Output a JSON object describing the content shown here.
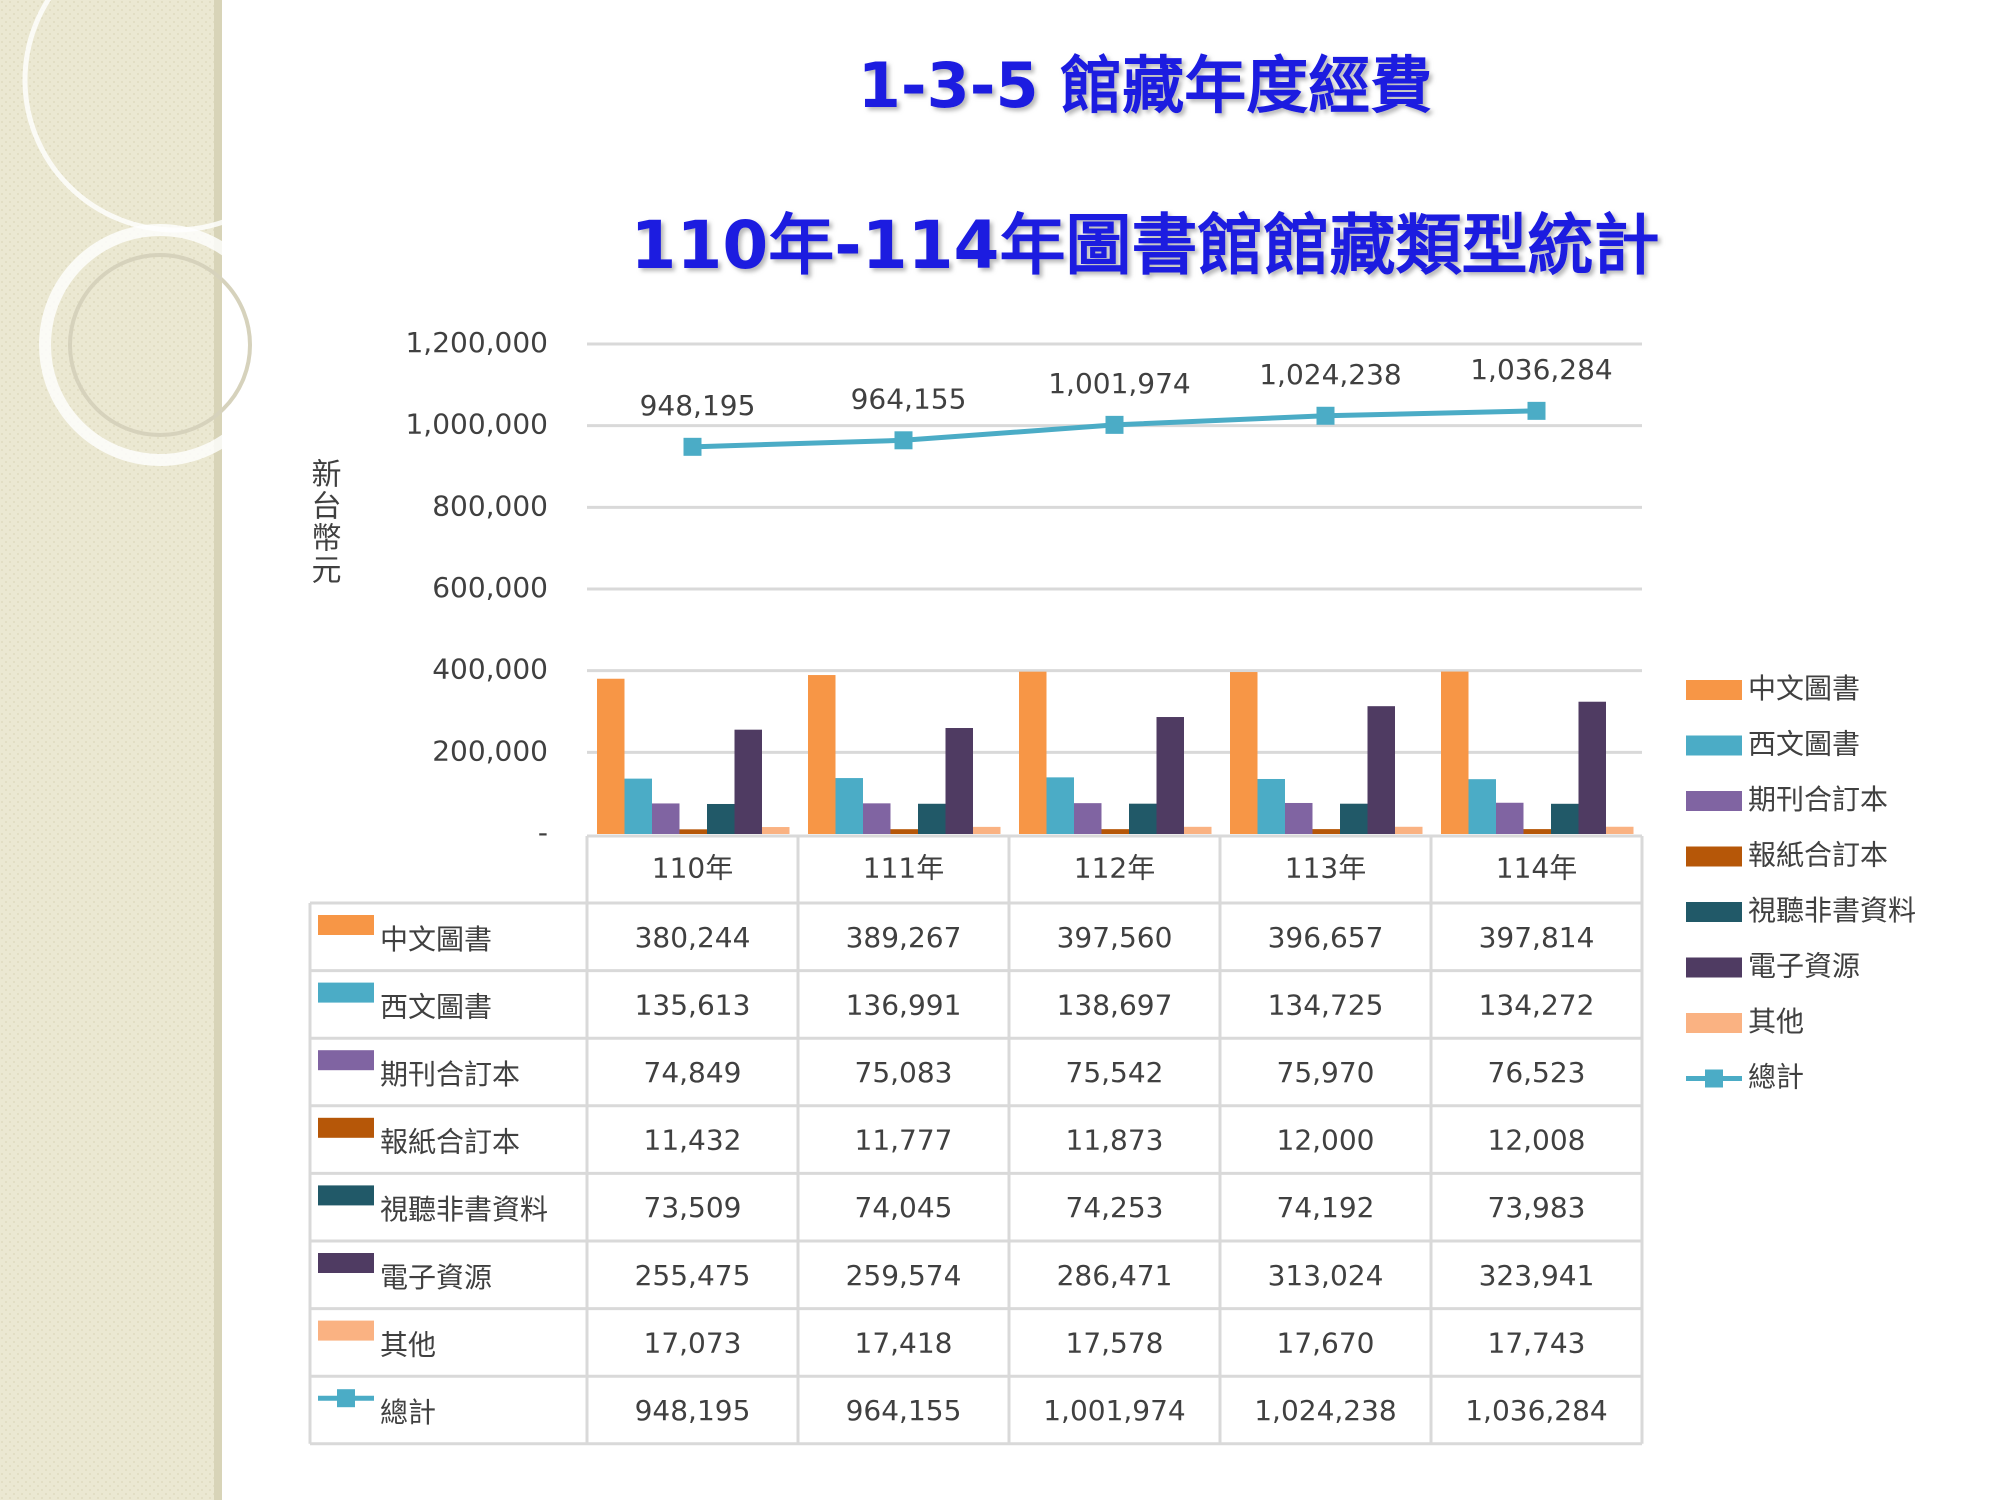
{
  "header": {
    "title": "1-3-5 館藏年度經費"
  },
  "chart_data": {
    "type": "bar",
    "title": "110年-114年圖書館館藏類型統計",
    "y_label": "新台幣元",
    "categories": [
      "110年",
      "111年",
      "112年",
      "113年",
      "114年"
    ],
    "ylim": [
      0,
      1200000
    ],
    "yticks": [
      {
        "value": 0,
        "label": "-"
      },
      {
        "value": 200000,
        "label": "200,000"
      },
      {
        "value": 400000,
        "label": "400,000"
      },
      {
        "value": 600000,
        "label": "600,000"
      },
      {
        "value": 800000,
        "label": "800,000"
      },
      {
        "value": 1000000,
        "label": "1,000,000"
      },
      {
        "value": 1200000,
        "label": "1,200,000"
      }
    ],
    "grid": true,
    "legend": "right",
    "series": [
      {
        "name": "中文圖書",
        "color": "#f79646",
        "values": [
          380244,
          389267,
          397560,
          396657,
          397814
        ],
        "value_labels": [
          "380,244",
          "389,267",
          "397,560",
          "396,657",
          "397,814"
        ]
      },
      {
        "name": "西文圖書",
        "color": "#4bacc6",
        "values": [
          135613,
          136991,
          138697,
          134725,
          134272
        ],
        "value_labels": [
          "135,613",
          "136,991",
          "138,697",
          "134,725",
          "134,272"
        ]
      },
      {
        "name": "期刊合訂本",
        "color": "#8064a2",
        "values": [
          74849,
          75083,
          75542,
          75970,
          76523
        ],
        "value_labels": [
          "74,849",
          "75,083",
          "75,542",
          "75,970",
          "76,523"
        ]
      },
      {
        "name": "報紙合訂本",
        "color": "#b65708",
        "values": [
          11432,
          11777,
          11873,
          12000,
          12008
        ],
        "value_labels": [
          "11,432",
          "11,777",
          "11,873",
          "12,000",
          "12,008"
        ]
      },
      {
        "name": "視聽非書資料",
        "color": "#215968",
        "values": [
          73509,
          74045,
          74253,
          74192,
          73983
        ],
        "value_labels": [
          "73,509",
          "74,045",
          "74,253",
          "74,192",
          "73,983"
        ]
      },
      {
        "name": "電子資源",
        "color": "#4f3b62",
        "values": [
          255475,
          259574,
          286471,
          313024,
          323941
        ],
        "value_labels": [
          "255,475",
          "259,574",
          "286,471",
          "313,024",
          "323,941"
        ]
      },
      {
        "name": "其他",
        "color": "#fab282",
        "values": [
          17073,
          17418,
          17578,
          17670,
          17743
        ],
        "value_labels": [
          "17,073",
          "17,418",
          "17,578",
          "17,670",
          "17,743"
        ]
      },
      {
        "name": "總計",
        "type": "line",
        "color": "#4bacc6",
        "values": [
          948195,
          964155,
          1001974,
          1024238,
          1036284
        ],
        "value_labels": [
          "948,195",
          "964,155",
          "1,001,974",
          "1,024,238",
          "1,036,284"
        ]
      }
    ]
  }
}
